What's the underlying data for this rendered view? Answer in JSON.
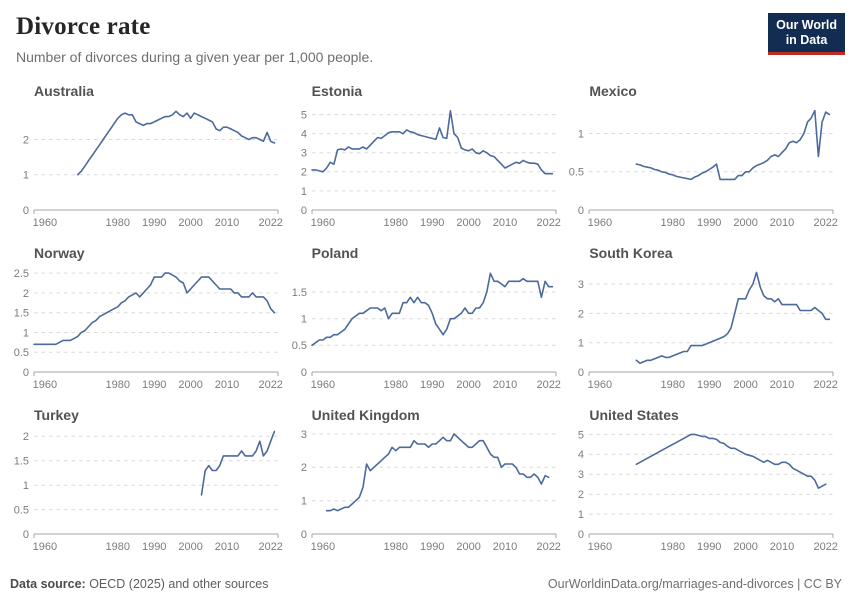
{
  "header": {
    "title": "Divorce rate",
    "subtitle": "Number of divorces during a given year per 1,000 people.",
    "logo": {
      "line1": "Our World",
      "line2": "in Data"
    }
  },
  "footer": {
    "source_label": "Data source:",
    "source_text": " OECD (2025) and other sources",
    "right_text": "OurWorldinData.org/marriages-and-divorces | CC BY"
  },
  "colors": {
    "line": "#4c6a9c",
    "grid": "#d9d9d9",
    "axis": "#a6a6a6",
    "tick_label": "#7c7c7c",
    "chart_title": "#525252",
    "logo_bg": "#132c52",
    "logo_accent": "#c22b22"
  },
  "chart_data": [
    {
      "type": "line",
      "title": "Australia",
      "xlim": [
        1957,
        2024
      ],
      "xticks": [
        1960,
        1980,
        1990,
        2000,
        2010,
        2022
      ],
      "ylim": [
        0,
        2.95
      ],
      "yticks": [
        0,
        1,
        2
      ],
      "x_start": 1969,
      "x_step": 1,
      "values": [
        1.0,
        1.1,
        1.25,
        1.4,
        1.55,
        1.7,
        1.85,
        2.0,
        2.15,
        2.3,
        2.45,
        2.6,
        2.7,
        2.75,
        2.7,
        2.7,
        2.5,
        2.45,
        2.4,
        2.45,
        2.45,
        2.5,
        2.55,
        2.6,
        2.65,
        2.65,
        2.7,
        2.8,
        2.7,
        2.65,
        2.75,
        2.6,
        2.75,
        2.7,
        2.65,
        2.6,
        2.55,
        2.5,
        2.3,
        2.25,
        2.35,
        2.35,
        2.3,
        2.25,
        2.2,
        2.1,
        2.05,
        2.0,
        2.05,
        2.05,
        2.0,
        1.95,
        2.2,
        1.95,
        1.9
      ]
    },
    {
      "type": "line",
      "title": "Estonia",
      "xlim": [
        1957,
        2024
      ],
      "xticks": [
        1960,
        1980,
        1990,
        2000,
        2010,
        2022
      ],
      "ylim": [
        0,
        5.45
      ],
      "yticks": [
        0,
        1,
        2,
        3,
        4,
        5
      ],
      "x_start": 1957,
      "x_step": 1,
      "values": [
        2.1,
        2.1,
        2.05,
        2.0,
        2.2,
        2.5,
        2.4,
        3.15,
        3.2,
        3.15,
        3.3,
        3.2,
        3.2,
        3.2,
        3.3,
        3.2,
        3.4,
        3.6,
        3.8,
        3.75,
        3.9,
        4.05,
        4.1,
        4.1,
        4.1,
        4.0,
        4.2,
        4.1,
        4.05,
        3.95,
        3.9,
        3.85,
        3.8,
        3.75,
        3.7,
        4.3,
        3.8,
        3.75,
        5.2,
        4.0,
        3.8,
        3.25,
        3.15,
        3.1,
        3.2,
        3.0,
        2.95,
        3.1,
        3.0,
        2.85,
        2.8,
        2.6,
        2.4,
        2.2,
        2.3,
        2.4,
        2.5,
        2.45,
        2.6,
        2.5,
        2.45,
        2.45,
        2.4,
        2.1,
        1.9,
        1.9,
        1.9
      ]
    },
    {
      "type": "line",
      "title": "Mexico",
      "xlim": [
        1957,
        2024
      ],
      "xticks": [
        1960,
        1980,
        1990,
        2000,
        2010,
        2022
      ],
      "ylim": [
        0,
        1.36
      ],
      "yticks": [
        0,
        0.5,
        1
      ],
      "x_start": 1970,
      "x_step": 1,
      "values": [
        0.6,
        0.59,
        0.57,
        0.56,
        0.55,
        0.53,
        0.52,
        0.5,
        0.49,
        0.47,
        0.46,
        0.44,
        0.43,
        0.42,
        0.41,
        0.4,
        0.43,
        0.45,
        0.48,
        0.5,
        0.53,
        0.56,
        0.6,
        0.4,
        0.4,
        0.4,
        0.4,
        0.4,
        0.45,
        0.45,
        0.5,
        0.5,
        0.55,
        0.58,
        0.6,
        0.62,
        0.65,
        0.7,
        0.72,
        0.7,
        0.75,
        0.8,
        0.88,
        0.9,
        0.88,
        0.92,
        1.0,
        1.15,
        1.2,
        1.3,
        0.7,
        1.15,
        1.28,
        1.25
      ]
    },
    {
      "type": "line",
      "title": "Norway",
      "xlim": [
        1957,
        2024
      ],
      "xticks": [
        1960,
        1980,
        1990,
        2000,
        2010,
        2022
      ],
      "ylim": [
        0,
        2.63
      ],
      "yticks": [
        0,
        0.5,
        1,
        1.5,
        2,
        2.5
      ],
      "x_start": 1957,
      "x_step": 1,
      "values": [
        0.7,
        0.7,
        0.7,
        0.7,
        0.7,
        0.7,
        0.7,
        0.75,
        0.8,
        0.8,
        0.8,
        0.85,
        0.9,
        1.0,
        1.05,
        1.15,
        1.25,
        1.3,
        1.4,
        1.45,
        1.5,
        1.55,
        1.6,
        1.65,
        1.75,
        1.8,
        1.9,
        1.95,
        2.0,
        1.9,
        2.0,
        2.1,
        2.2,
        2.4,
        2.4,
        2.4,
        2.5,
        2.5,
        2.45,
        2.4,
        2.3,
        2.25,
        2.0,
        2.1,
        2.2,
        2.3,
        2.4,
        2.4,
        2.4,
        2.3,
        2.2,
        2.1,
        2.1,
        2.1,
        2.1,
        2.0,
        2.0,
        1.9,
        1.9,
        1.9,
        2.0,
        1.9,
        1.9,
        1.9,
        1.8,
        1.6,
        1.5
      ]
    },
    {
      "type": "line",
      "title": "Poland",
      "xlim": [
        1957,
        2024
      ],
      "xticks": [
        1960,
        1980,
        1990,
        2000,
        2010,
        2022
      ],
      "ylim": [
        0,
        1.95
      ],
      "yticks": [
        0,
        0.5,
        1,
        1.5
      ],
      "x_start": 1957,
      "x_step": 1,
      "values": [
        0.5,
        0.55,
        0.6,
        0.6,
        0.65,
        0.65,
        0.7,
        0.7,
        0.75,
        0.8,
        0.9,
        1.0,
        1.05,
        1.1,
        1.1,
        1.15,
        1.2,
        1.2,
        1.2,
        1.15,
        1.2,
        1.0,
        1.1,
        1.1,
        1.1,
        1.3,
        1.3,
        1.4,
        1.3,
        1.4,
        1.3,
        1.3,
        1.25,
        1.1,
        0.9,
        0.8,
        0.7,
        0.8,
        1.0,
        1.0,
        1.05,
        1.1,
        1.2,
        1.1,
        1.1,
        1.2,
        1.2,
        1.3,
        1.5,
        1.85,
        1.7,
        1.7,
        1.65,
        1.6,
        1.7,
        1.7,
        1.7,
        1.7,
        1.75,
        1.7,
        1.7,
        1.7,
        1.7,
        1.4,
        1.7,
        1.6,
        1.6
      ]
    },
    {
      "type": "line",
      "title": "South Korea",
      "xlim": [
        1957,
        2024
      ],
      "xticks": [
        1960,
        1980,
        1990,
        2000,
        2010,
        2022
      ],
      "ylim": [
        0,
        3.55
      ],
      "yticks": [
        0,
        1,
        2,
        3
      ],
      "x_start": 1970,
      "x_step": 1,
      "values": [
        0.4,
        0.3,
        0.35,
        0.4,
        0.4,
        0.45,
        0.5,
        0.55,
        0.5,
        0.5,
        0.55,
        0.6,
        0.65,
        0.7,
        0.7,
        0.9,
        0.9,
        0.9,
        0.9,
        0.95,
        1.0,
        1.05,
        1.1,
        1.15,
        1.2,
        1.3,
        1.5,
        2.0,
        2.5,
        2.5,
        2.5,
        2.8,
        3.0,
        3.4,
        2.9,
        2.6,
        2.5,
        2.5,
        2.4,
        2.5,
        2.3,
        2.3,
        2.3,
        2.3,
        2.3,
        2.1,
        2.1,
        2.1,
        2.1,
        2.2,
        2.1,
        2.0,
        1.8,
        1.8
      ]
    },
    {
      "type": "line",
      "title": "Turkey",
      "xlim": [
        1957,
        2024
      ],
      "xticks": [
        1960,
        1980,
        1990,
        2000,
        2010,
        2022
      ],
      "ylim": [
        0,
        2.13
      ],
      "yticks": [
        0,
        0.5,
        1,
        1.5,
        2
      ],
      "x_start": 2003,
      "x_step": 1,
      "values": [
        0.8,
        1.3,
        1.4,
        1.3,
        1.3,
        1.4,
        1.6,
        1.6,
        1.6,
        1.6,
        1.6,
        1.7,
        1.6,
        1.6,
        1.6,
        1.7,
        1.9,
        1.6,
        1.7,
        1.9,
        2.1
      ]
    },
    {
      "type": "line",
      "title": "United Kingdom",
      "xlim": [
        1957,
        2024
      ],
      "xticks": [
        1960,
        1980,
        1990,
        2000,
        2010,
        2022
      ],
      "ylim": [
        0,
        3.12
      ],
      "yticks": [
        0,
        1,
        2,
        3
      ],
      "x_start": 1961,
      "x_step": 1,
      "values": [
        0.7,
        0.7,
        0.75,
        0.7,
        0.75,
        0.8,
        0.8,
        0.9,
        1.0,
        1.1,
        1.4,
        2.1,
        1.9,
        2.0,
        2.1,
        2.2,
        2.3,
        2.4,
        2.6,
        2.5,
        2.6,
        2.6,
        2.6,
        2.6,
        2.8,
        2.7,
        2.7,
        2.7,
        2.6,
        2.7,
        2.7,
        2.8,
        2.9,
        2.8,
        2.8,
        3.0,
        2.9,
        2.8,
        2.7,
        2.6,
        2.6,
        2.7,
        2.8,
        2.8,
        2.6,
        2.4,
        2.3,
        2.3,
        2.0,
        2.1,
        2.1,
        2.1,
        2.0,
        1.8,
        1.8,
        1.7,
        1.7,
        1.8,
        1.7,
        1.5,
        1.75,
        1.7
      ]
    },
    {
      "type": "line",
      "title": "United States",
      "xlim": [
        1957,
        2024
      ],
      "xticks": [
        1960,
        1980,
        1990,
        2000,
        2010,
        2022
      ],
      "ylim": [
        0,
        5.22
      ],
      "yticks": [
        0,
        1,
        2,
        3,
        4,
        5
      ],
      "x_start": 1970,
      "x_step": 1,
      "values": [
        3.5,
        3.6,
        3.7,
        3.8,
        3.9,
        4.0,
        4.1,
        4.2,
        4.3,
        4.4,
        4.5,
        4.6,
        4.7,
        4.8,
        4.9,
        5.0,
        5.0,
        4.95,
        4.9,
        4.9,
        4.8,
        4.8,
        4.75,
        4.6,
        4.55,
        4.4,
        4.3,
        4.3,
        4.2,
        4.1,
        4.0,
        3.95,
        3.9,
        3.8,
        3.7,
        3.6,
        3.7,
        3.6,
        3.5,
        3.5,
        3.6,
        3.6,
        3.5,
        3.3,
        3.2,
        3.1,
        3.0,
        2.9,
        2.9,
        2.7,
        2.3,
        2.4,
        2.5
      ]
    }
  ]
}
